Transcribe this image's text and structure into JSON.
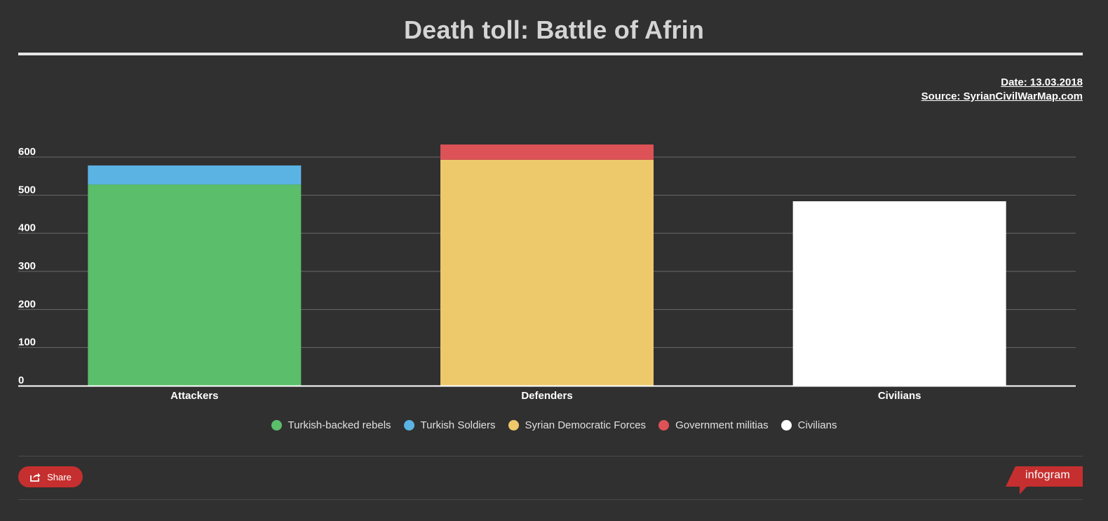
{
  "page": {
    "title": "Death toll: Battle of Afrin",
    "date_text": "Date: 13.03.2018",
    "source_text": "Source: SyrianCivilWarMap.com"
  },
  "chart_data": {
    "type": "bar",
    "stacked": true,
    "categories": [
      "Attackers",
      "Defenders",
      "Civilians"
    ],
    "series": [
      {
        "name": "Turkish-backed rebels",
        "color": "#5bbe6a",
        "values": [
          528,
          0,
          0
        ]
      },
      {
        "name": "Turkish Soldiers",
        "color": "#5bb3e3",
        "values": [
          50,
          0,
          0
        ]
      },
      {
        "name": "Syrian Democratic Forces",
        "color": "#eec96c",
        "values": [
          0,
          593,
          0
        ]
      },
      {
        "name": "Government militias",
        "color": "#dd5257",
        "values": [
          0,
          40,
          0
        ]
      },
      {
        "name": "Civilians",
        "color": "#ffffff",
        "values": [
          0,
          0,
          484
        ]
      }
    ],
    "y_ticks": [
      0,
      100,
      200,
      300,
      400,
      500,
      600
    ],
    "ylim": [
      0,
      600
    ],
    "grid": true,
    "legend_position": "bottom"
  },
  "footer": {
    "share_label": "Share",
    "brand_label": "infogram"
  }
}
